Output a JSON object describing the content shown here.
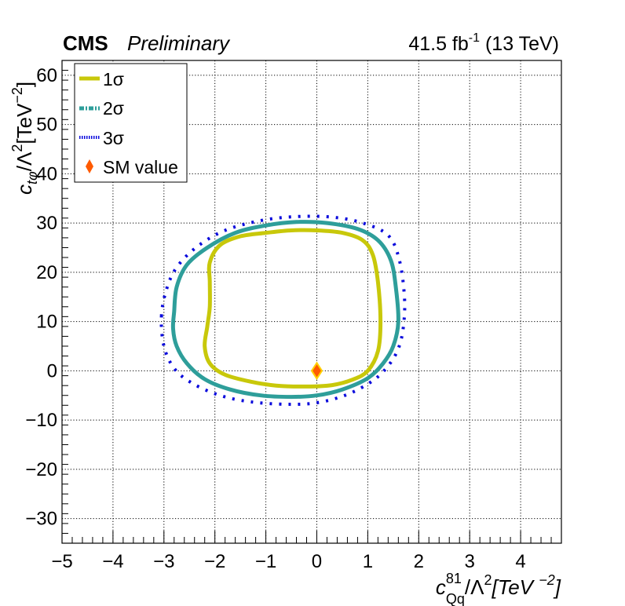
{
  "header": {
    "experiment": "CMS",
    "status": "Preliminary",
    "lumi_value": "41.5 fb",
    "lumi_exp": "-1",
    "lumi_energy": " (13 TeV)"
  },
  "axes": {
    "x_title": {
      "main": "c",
      "sup": "81",
      "sub": "Qq",
      "rest": "/Λ",
      "rest_sup": "2",
      "unit": "[TeV ",
      "unit_sup": "−2",
      "unit_close": "]"
    },
    "y_title": {
      "main": "c",
      "sub": "tφ",
      "rest": "/Λ",
      "rest_sup": "2",
      "unit": "[TeV",
      "unit_sup": "−2",
      "unit_close": "]"
    }
  },
  "legend": {
    "items": [
      {
        "label": "1σ",
        "color": "#c8c80a",
        "style": "solid"
      },
      {
        "label": "2σ",
        "color": "#2e9e9a",
        "style": "dashdot"
      },
      {
        "label": "3σ",
        "color": "#0a0adc",
        "style": "dotted"
      },
      {
        "label": "SM value",
        "color": "#ff5a00",
        "style": "marker"
      }
    ]
  },
  "colors": {
    "one_sigma": "#c8c80a",
    "two_sigma": "#2e9e9a",
    "three_sigma": "#0a0adc",
    "sm_fill": "#ff5a00",
    "sm_edge": "#ffd000"
  },
  "chart_data": {
    "type": "scatter",
    "xlim": [
      -5,
      4.8
    ],
    "ylim": [
      -35,
      63
    ],
    "x_ticks": [
      -5,
      -4,
      -3,
      -2,
      -1,
      0,
      1,
      2,
      3,
      4
    ],
    "x_tick_labels": [
      "−5",
      "−4",
      "−3",
      "−2",
      "−1",
      "0",
      "1",
      "2",
      "3",
      "4"
    ],
    "y_ticks": [
      -30,
      -20,
      -10,
      0,
      10,
      20,
      30,
      40,
      50,
      60
    ],
    "y_tick_labels": [
      "−30",
      "−20",
      "−10",
      "0",
      "10",
      "20",
      "30",
      "40",
      "50",
      "60"
    ],
    "grid": true,
    "legend_position": "top-left",
    "sm_point": {
      "x": 0,
      "y": 0
    },
    "series": [
      {
        "name": "1σ",
        "closed": true,
        "points": [
          [
            -2.1,
            22
          ],
          [
            -1.9,
            25.5
          ],
          [
            -1.5,
            27.3
          ],
          [
            -1,
            28
          ],
          [
            -0.5,
            28.5
          ],
          [
            0,
            28.5
          ],
          [
            0.5,
            28
          ],
          [
            0.9,
            26.5
          ],
          [
            1.1,
            23.5
          ],
          [
            1.2,
            18
          ],
          [
            1.25,
            10
          ],
          [
            1.2,
            4
          ],
          [
            1.0,
            0
          ],
          [
            0.7,
            -1.8
          ],
          [
            0.3,
            -2.9
          ],
          [
            -0.2,
            -3.2
          ],
          [
            -0.8,
            -3.0
          ],
          [
            -1.3,
            -2.2
          ],
          [
            -1.8,
            -0.8
          ],
          [
            -2.1,
            1.5
          ],
          [
            -2.2,
            5
          ],
          [
            -2.15,
            9
          ],
          [
            -2.1,
            13
          ],
          [
            -2.1,
            18
          ]
        ]
      },
      {
        "name": "2σ",
        "closed": true,
        "points": [
          [
            -2.8,
            12
          ],
          [
            -2.75,
            17
          ],
          [
            -2.55,
            21.5
          ],
          [
            -2.15,
            25
          ],
          [
            -1.6,
            28
          ],
          [
            -1,
            29.5
          ],
          [
            -0.4,
            30.2
          ],
          [
            0.2,
            30
          ],
          [
            0.8,
            28.8
          ],
          [
            1.2,
            26.5
          ],
          [
            1.45,
            22.5
          ],
          [
            1.55,
            17
          ],
          [
            1.6,
            10
          ],
          [
            1.5,
            5
          ],
          [
            1.3,
            1.5
          ],
          [
            1.0,
            -1.5
          ],
          [
            0.5,
            -3.8
          ],
          [
            0,
            -5
          ],
          [
            -0.5,
            -5.3
          ],
          [
            -1.1,
            -5
          ],
          [
            -1.7,
            -3.8
          ],
          [
            -2.2,
            -1.7
          ],
          [
            -2.55,
            1.5
          ],
          [
            -2.75,
            5
          ],
          [
            -2.82,
            8.5
          ]
        ]
      },
      {
        "name": "3σ",
        "closed": true,
        "points": [
          [
            -3.05,
            11
          ],
          [
            -2.95,
            16.5
          ],
          [
            -2.75,
            21
          ],
          [
            -2.35,
            25.2
          ],
          [
            -1.8,
            28.5
          ],
          [
            -1.1,
            30.5
          ],
          [
            -0.4,
            31.3
          ],
          [
            0.3,
            31.2
          ],
          [
            0.9,
            30
          ],
          [
            1.4,
            27.5
          ],
          [
            1.62,
            22.5
          ],
          [
            1.72,
            15
          ],
          [
            1.7,
            9
          ],
          [
            1.6,
            4.5
          ],
          [
            1.4,
            1
          ],
          [
            1.1,
            -2
          ],
          [
            0.6,
            -4.8
          ],
          [
            0,
            -6.5
          ],
          [
            -0.6,
            -6.8
          ],
          [
            -1.3,
            -6.3
          ],
          [
            -1.9,
            -5
          ],
          [
            -2.45,
            -2.5
          ],
          [
            -2.8,
            0.5
          ],
          [
            -3.0,
            5
          ]
        ]
      }
    ]
  }
}
